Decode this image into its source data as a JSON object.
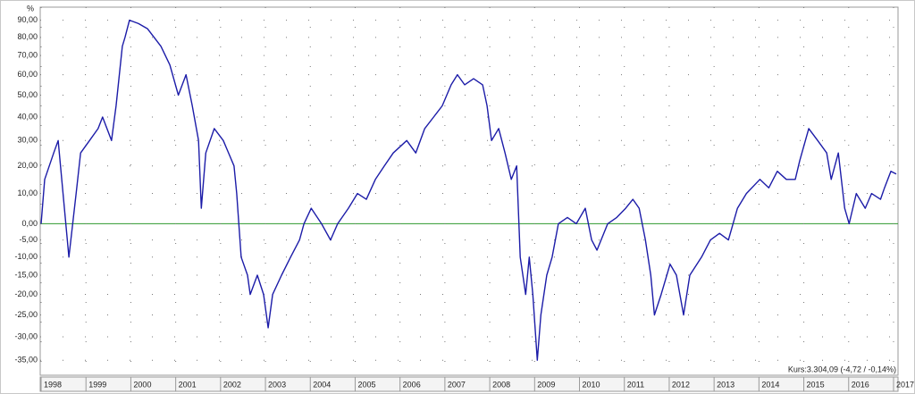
{
  "chart_data": {
    "type": "line",
    "y_unit": "%",
    "annotation": "Kurs:3.304,09 (-4,72 / -0,14%)",
    "log_scale": true,
    "grid": true,
    "baseline_color": "#2e9a2e",
    "xlim": [
      1997.98,
      2017.1
    ],
    "xticks": [
      1998,
      1999,
      2000,
      2001,
      2002,
      2003,
      2004,
      2005,
      2006,
      2007,
      2008,
      2009,
      2010,
      2011,
      2012,
      2013,
      2014,
      2015,
      2016,
      2017
    ],
    "ylim": [
      -38,
      98
    ],
    "yticks": [
      {
        "value": -35,
        "label": "-35,00"
      },
      {
        "value": -30,
        "label": "-30,00"
      },
      {
        "value": -25,
        "label": "-25,00"
      },
      {
        "value": -20,
        "label": "-20,00"
      },
      {
        "value": -15,
        "label": "-15,00"
      },
      {
        "value": -10,
        "label": "-10,00"
      },
      {
        "value": -5,
        "label": "-5,00"
      },
      {
        "value": 0,
        "label": "0,00"
      },
      {
        "value": 10,
        "label": "10,00"
      },
      {
        "value": 20,
        "label": "20,00"
      },
      {
        "value": 30,
        "label": "30,00"
      },
      {
        "value": 40,
        "label": "40,00"
      },
      {
        "value": 50,
        "label": "50,00"
      },
      {
        "value": 60,
        "label": "60,00"
      },
      {
        "value": 70,
        "label": "70,00"
      },
      {
        "value": 80,
        "label": "80,00"
      },
      {
        "value": 90,
        "label": "90,00"
      }
    ],
    "x": [
      1998.0,
      1998.08,
      1998.28,
      1998.38,
      1998.62,
      1998.78,
      1998.88,
      1999.08,
      1999.27,
      1999.37,
      1999.57,
      1999.67,
      1999.81,
      1999.87,
      1999.97,
      2000.17,
      2000.37,
      2000.67,
      2000.87,
      2001.06,
      2001.23,
      2001.37,
      2001.51,
      2001.57,
      2001.67,
      2001.86,
      2002.06,
      2002.3,
      2002.36,
      2002.46,
      2002.6,
      2002.66,
      2002.82,
      2002.96,
      2003.06,
      2003.16,
      2003.36,
      2003.56,
      2003.76,
      2003.86,
      2004.02,
      2004.25,
      2004.45,
      2004.61,
      2004.85,
      2005.05,
      2005.25,
      2005.45,
      2005.65,
      2005.85,
      2006.15,
      2006.35,
      2006.55,
      2006.75,
      2006.94,
      2007.14,
      2007.28,
      2007.44,
      2007.64,
      2007.84,
      2007.94,
      2008.04,
      2008.2,
      2008.34,
      2008.48,
      2008.6,
      2008.68,
      2008.8,
      2008.88,
      2008.96,
      2009.06,
      2009.14,
      2009.27,
      2009.39,
      2009.53,
      2009.73,
      2009.93,
      2010.13,
      2010.27,
      2010.39,
      2010.63,
      2010.83,
      2011.03,
      2011.19,
      2011.33,
      2011.47,
      2011.59,
      2011.67,
      2011.82,
      2012.02,
      2012.16,
      2012.32,
      2012.46,
      2012.72,
      2012.92,
      2013.12,
      2013.32,
      2013.52,
      2013.72,
      2014.02,
      2014.22,
      2014.41,
      2014.61,
      2014.81,
      2014.91,
      2015.11,
      2015.31,
      2015.51,
      2015.61,
      2015.77,
      2015.91,
      2016.01,
      2016.17,
      2016.37,
      2016.51,
      2016.71,
      2016.8,
      2016.94,
      2017.06
    ],
    "series": [
      {
        "color": "#1c1ca8",
        "values": [
          0,
          15,
          25,
          30,
          -10,
          10,
          25,
          30,
          35,
          40,
          30,
          45,
          75,
          80,
          90,
          88,
          85,
          75,
          65,
          50,
          60,
          45,
          30,
          5,
          25,
          35,
          30,
          20,
          10,
          -10,
          -15,
          -20,
          -15,
          -20,
          -28,
          -20,
          -15,
          -10,
          -5,
          0,
          5,
          0,
          -5,
          0,
          5,
          10,
          8,
          15,
          20,
          25,
          30,
          25,
          35,
          40,
          45,
          55,
          60,
          55,
          58,
          55,
          45,
          30,
          35,
          25,
          15,
          20,
          -10,
          -20,
          -10,
          -20,
          -35,
          -25,
          -15,
          -10,
          0,
          2,
          0,
          5,
          -5,
          -8,
          0,
          2,
          5,
          8,
          5,
          -5,
          -15,
          -25,
          -20,
          -12,
          -15,
          -25,
          -15,
          -10,
          -5,
          -3,
          -5,
          5,
          10,
          15,
          12,
          18,
          15,
          15,
          22,
          35,
          30,
          25,
          15,
          25,
          5,
          0,
          10,
          5,
          10,
          8,
          12,
          18,
          17
        ]
      }
    ]
  }
}
